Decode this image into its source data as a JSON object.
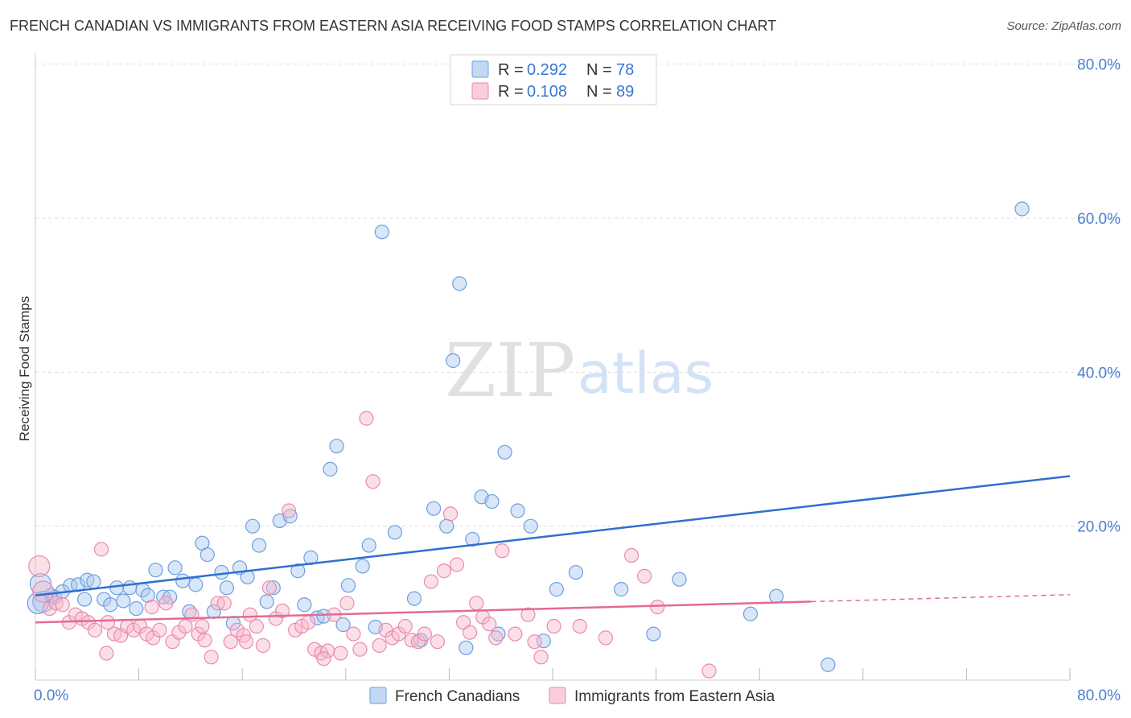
{
  "header": {
    "title": "FRENCH CANADIAN VS IMMIGRANTS FROM EASTERN ASIA RECEIVING FOOD STAMPS CORRELATION CHART",
    "source": "Source: ZipAtlas.com"
  },
  "watermark": {
    "zip": "ZIP",
    "atlas": "atlas"
  },
  "colors": {
    "blue_fill": "#a8c8f0",
    "blue_stroke": "#6d9fe0",
    "blue_line": "#2f6fd0",
    "pink_fill": "#f6b8cc",
    "pink_stroke": "#eb8aab",
    "pink_line": "#e56a93",
    "grid": "#dddddd",
    "tick_label": "#4a7fcf"
  },
  "legend": {
    "entries": [
      {
        "r_label": "R =",
        "r_value": "0.292",
        "n_label": "N =",
        "n_value": "78"
      },
      {
        "r_label": "R =",
        "r_value": "0.108",
        "n_label": "N =",
        "n_value": "89"
      }
    ]
  },
  "chart_data": {
    "type": "scatter",
    "title": "FRENCH CANADIAN VS IMMIGRANTS FROM EASTERN ASIA RECEIVING FOOD STAMPS CORRELATION CHART",
    "xlabel": "",
    "ylabel": "Receiving Food Stamps",
    "xlim": [
      0,
      80
    ],
    "ylim": [
      0,
      80
    ],
    "x_tick_labels": [
      "0.0%",
      "80.0%"
    ],
    "y_ticks": [
      20,
      40,
      60,
      80
    ],
    "y_tick_labels": [
      "20.0%",
      "40.0%",
      "60.0%",
      "80.0%"
    ],
    "grid": true,
    "legend_position": "top-center",
    "series": [
      {
        "name": "French Canadians",
        "color": "#a8c8f0",
        "trend": {
          "x": [
            0,
            80
          ],
          "y": [
            11.0,
            26.5
          ],
          "dashed_from": null
        },
        "points": [
          [
            0.4,
            12.5
          ],
          [
            0.6,
            10.2
          ],
          [
            1.2,
            11.0
          ],
          [
            1.5,
            10.8
          ],
          [
            2.1,
            11.5
          ],
          [
            2.7,
            12.3
          ],
          [
            3.3,
            12.4
          ],
          [
            3.8,
            10.5
          ],
          [
            4.0,
            13.0
          ],
          [
            4.5,
            12.8
          ],
          [
            5.3,
            10.5
          ],
          [
            5.8,
            9.8
          ],
          [
            6.3,
            12.0
          ],
          [
            6.8,
            10.3
          ],
          [
            7.3,
            12.0
          ],
          [
            7.8,
            9.3
          ],
          [
            8.3,
            11.7
          ],
          [
            8.7,
            11.0
          ],
          [
            9.3,
            14.3
          ],
          [
            9.9,
            10.8
          ],
          [
            10.4,
            10.8
          ],
          [
            10.8,
            14.6
          ],
          [
            11.4,
            12.9
          ],
          [
            11.9,
            8.9
          ],
          [
            12.4,
            12.4
          ],
          [
            12.9,
            17.8
          ],
          [
            13.3,
            16.3
          ],
          [
            13.8,
            8.9
          ],
          [
            14.4,
            14.0
          ],
          [
            14.8,
            12.0
          ],
          [
            15.3,
            7.4
          ],
          [
            15.8,
            14.6
          ],
          [
            16.4,
            13.4
          ],
          [
            16.8,
            20.0
          ],
          [
            17.3,
            17.5
          ],
          [
            17.9,
            10.2
          ],
          [
            18.4,
            12.0
          ],
          [
            18.9,
            20.7
          ],
          [
            19.7,
            21.3
          ],
          [
            20.3,
            14.2
          ],
          [
            20.8,
            9.8
          ],
          [
            21.3,
            15.9
          ],
          [
            21.8,
            8.1
          ],
          [
            22.3,
            8.3
          ],
          [
            22.8,
            27.4
          ],
          [
            23.3,
            30.4
          ],
          [
            23.8,
            7.2
          ],
          [
            24.2,
            12.3
          ],
          [
            25.3,
            14.8
          ],
          [
            25.8,
            17.5
          ],
          [
            26.3,
            6.9
          ],
          [
            26.8,
            58.2
          ],
          [
            27.8,
            19.2
          ],
          [
            29.3,
            10.6
          ],
          [
            29.8,
            5.2
          ],
          [
            30.8,
            22.3
          ],
          [
            31.8,
            20.0
          ],
          [
            32.3,
            41.5
          ],
          [
            32.8,
            51.5
          ],
          [
            33.3,
            4.2
          ],
          [
            33.8,
            18.3
          ],
          [
            34.5,
            23.8
          ],
          [
            35.3,
            23.2
          ],
          [
            35.8,
            6.0
          ],
          [
            36.3,
            29.6
          ],
          [
            37.3,
            22.0
          ],
          [
            38.3,
            20.0
          ],
          [
            39.3,
            5.1
          ],
          [
            40.3,
            11.8
          ],
          [
            41.8,
            14.0
          ],
          [
            45.3,
            11.8
          ],
          [
            47.8,
            6.0
          ],
          [
            49.8,
            13.1
          ],
          [
            55.3,
            8.6
          ],
          [
            57.3,
            10.9
          ],
          [
            61.3,
            2.0
          ],
          [
            76.3,
            61.2
          ],
          [
            0.2,
            10.0
          ]
        ]
      },
      {
        "name": "Immigrants from Eastern Asia",
        "color": "#f6b8cc",
        "trend": {
          "x": [
            0,
            80
          ],
          "y": [
            7.5,
            11.1
          ],
          "dashed_from": 60
        },
        "points": [
          [
            0.3,
            14.8
          ],
          [
            0.6,
            11.5
          ],
          [
            1.1,
            9.3
          ],
          [
            1.6,
            10.0
          ],
          [
            2.1,
            9.8
          ],
          [
            2.6,
            7.5
          ],
          [
            3.1,
            8.5
          ],
          [
            3.6,
            8.0
          ],
          [
            4.1,
            7.5
          ],
          [
            4.6,
            6.5
          ],
          [
            5.1,
            17.0
          ],
          [
            5.6,
            7.5
          ],
          [
            6.1,
            6.0
          ],
          [
            6.6,
            5.8
          ],
          [
            7.1,
            7.0
          ],
          [
            7.6,
            6.5
          ],
          [
            8.1,
            7.0
          ],
          [
            8.6,
            6.0
          ],
          [
            9.1,
            5.5
          ],
          [
            9.6,
            6.5
          ],
          [
            10.1,
            10.0
          ],
          [
            10.6,
            5.0
          ],
          [
            11.1,
            6.2
          ],
          [
            11.6,
            7.0
          ],
          [
            12.1,
            8.5
          ],
          [
            12.6,
            6.0
          ],
          [
            13.1,
            5.2
          ],
          [
            13.6,
            3.0
          ],
          [
            14.1,
            10.0
          ],
          [
            14.6,
            10.0
          ],
          [
            15.1,
            5.0
          ],
          [
            15.6,
            6.5
          ],
          [
            16.1,
            5.8
          ],
          [
            16.6,
            8.5
          ],
          [
            17.1,
            7.0
          ],
          [
            17.6,
            4.5
          ],
          [
            18.1,
            12.0
          ],
          [
            18.6,
            8.0
          ],
          [
            19.1,
            9.0
          ],
          [
            19.6,
            22.0
          ],
          [
            20.1,
            6.5
          ],
          [
            20.6,
            7.0
          ],
          [
            21.1,
            7.5
          ],
          [
            21.6,
            4.0
          ],
          [
            22.1,
            3.5
          ],
          [
            22.6,
            3.8
          ],
          [
            23.1,
            8.5
          ],
          [
            23.6,
            3.5
          ],
          [
            24.1,
            10.0
          ],
          [
            24.6,
            6.0
          ],
          [
            25.1,
            4.0
          ],
          [
            25.6,
            34.0
          ],
          [
            26.1,
            25.8
          ],
          [
            26.6,
            4.5
          ],
          [
            27.1,
            6.5
          ],
          [
            27.6,
            5.5
          ],
          [
            28.1,
            6.0
          ],
          [
            28.6,
            7.0
          ],
          [
            29.1,
            5.2
          ],
          [
            29.6,
            5.0
          ],
          [
            30.1,
            6.0
          ],
          [
            30.6,
            12.8
          ],
          [
            31.1,
            5.0
          ],
          [
            31.6,
            14.2
          ],
          [
            32.1,
            21.6
          ],
          [
            32.6,
            15.0
          ],
          [
            33.1,
            7.5
          ],
          [
            33.6,
            6.2
          ],
          [
            34.1,
            10.0
          ],
          [
            34.6,
            8.2
          ],
          [
            35.1,
            7.3
          ],
          [
            35.6,
            5.5
          ],
          [
            36.1,
            16.8
          ],
          [
            37.1,
            6.0
          ],
          [
            38.1,
            8.5
          ],
          [
            38.6,
            5.0
          ],
          [
            39.1,
            3.0
          ],
          [
            40.1,
            7.0
          ],
          [
            42.1,
            7.0
          ],
          [
            44.1,
            5.5
          ],
          [
            46.1,
            16.2
          ],
          [
            47.1,
            13.5
          ],
          [
            48.1,
            9.5
          ],
          [
            52.1,
            1.2
          ],
          [
            12.9,
            7.0
          ],
          [
            16.3,
            5.0
          ],
          [
            22.3,
            2.8
          ],
          [
            5.5,
            3.5
          ],
          [
            9.0,
            9.5
          ]
        ]
      }
    ]
  }
}
